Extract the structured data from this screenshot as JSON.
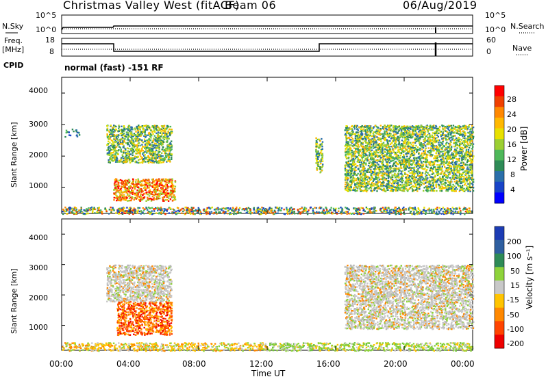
{
  "header": {
    "station": "Christmas Valley West (fitACF)",
    "beam": "Beam 06",
    "date": "06/Aug/2019"
  },
  "left_labels": {
    "nsky": "N.Sky",
    "freq": "Freq.",
    "freq_unit": "[MHz]",
    "cpid": "CPID"
  },
  "right_labels": {
    "nsearch": "N.Search",
    "nave": "Nave"
  },
  "noise_ticks": {
    "left": [
      "10^5",
      "10^0"
    ],
    "right": [
      "10^5",
      "10^0"
    ]
  },
  "freq_ticks": {
    "left": [
      "18",
      "8"
    ],
    "right": [
      "60",
      "0"
    ]
  },
  "cpid_text": "normal (fast) -151 RF",
  "x_axis": {
    "ticks": [
      "00:00",
      "04:00",
      "08:00",
      "12:00",
      "16:00",
      "20:00",
      "00:00"
    ],
    "label": "Time UT"
  },
  "power_panel": {
    "ylabel": "Slant Range [km]",
    "yticks": [
      "4000",
      "3000",
      "2000",
      "1000"
    ],
    "cbar_label": "Power [dB]",
    "cbar_ticks": [
      "28",
      "24",
      "20",
      "16",
      "12",
      "8",
      "4"
    ],
    "cbar_colors": [
      "#ff0000",
      "#f04000",
      "#ff8800",
      "#ffb800",
      "#e8e000",
      "#9ccf32",
      "#4eb85a",
      "#2e8b57",
      "#2a6faa",
      "#1844c8",
      "#0000ff"
    ]
  },
  "velocity_panel": {
    "ylabel": "Slant Range [km]",
    "yticks": [
      "4000",
      "3000",
      "2000",
      "1000"
    ],
    "cbar_label": "Velocity [m s⁻¹]",
    "cbar_ticks": [
      "200",
      "100",
      "50",
      "15",
      "-15",
      "-50",
      "-100",
      "-200"
    ],
    "cbar_colors": [
      "#1c3cb4",
      "#2f5fa0",
      "#2e8b57",
      "#8ed33b",
      "#c8c8c8",
      "#ffc400",
      "#ff8800",
      "#ff4400",
      "#ee0000"
    ]
  },
  "chart_data": {
    "type": "heatmap",
    "x_range_hours": [
      0,
      24
    ],
    "y_range_km": [
      180,
      4500
    ],
    "power_regions": [
      {
        "t0": 0.0,
        "t1": 1.0,
        "r0": 2600,
        "r1": 2900,
        "level": "weak"
      },
      {
        "t0": 2.6,
        "t1": 6.4,
        "r0": 1800,
        "r1": 3000,
        "level": "moderate"
      },
      {
        "t0": 3.0,
        "t1": 6.6,
        "r0": 600,
        "r1": 1300,
        "level": "strong"
      },
      {
        "t0": 3.2,
        "t1": 4.4,
        "r0": 200,
        "r1": 350,
        "level": "strong"
      },
      {
        "t0": 14.8,
        "t1": 15.2,
        "r0": 1500,
        "r1": 2600,
        "level": "moderate"
      },
      {
        "t0": 16.5,
        "t1": 24.0,
        "r0": 900,
        "r1": 3000,
        "level": "moderate"
      },
      {
        "t0": 0.0,
        "t1": 24.0,
        "r0": 180,
        "r1": 400,
        "level": "ground"
      }
    ],
    "velocity_regions": [
      {
        "t0": 2.6,
        "t1": 6.4,
        "r0": 1800,
        "r1": 3000,
        "value": "-15..15"
      },
      {
        "t0": 3.2,
        "t1": 6.4,
        "r0": 700,
        "r1": 1800,
        "value": "-50..-100"
      },
      {
        "t0": 16.5,
        "t1": 24.0,
        "r0": 900,
        "r1": 3000,
        "value": "-15..15"
      },
      {
        "t0": 0.0,
        "t1": 12.0,
        "r0": 180,
        "r1": 450,
        "value": "-15..-50"
      },
      {
        "t0": 12.0,
        "t1": 24.0,
        "r0": 180,
        "r1": 450,
        "value": "15..50"
      }
    ]
  }
}
